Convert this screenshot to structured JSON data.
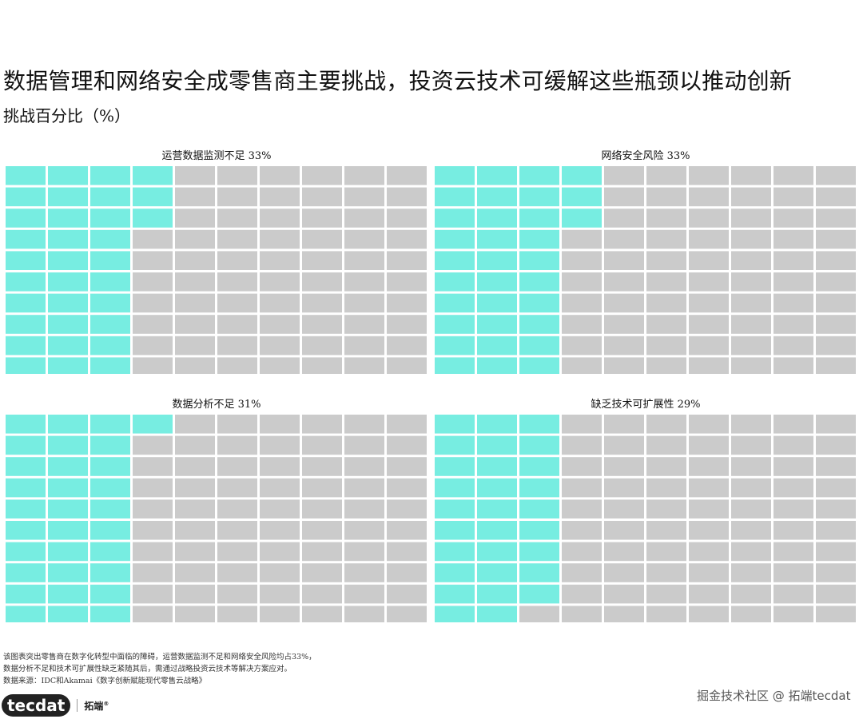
{
  "title": "数据管理和网络安全成零售商主要挑战，投资云技术可缓解这些瓶颈以推动创新",
  "subtitle": "挑战百分比（%）",
  "colors": {
    "filled": "#77ede1",
    "empty": "#cbcbcb",
    "background": "#ffffff"
  },
  "chart_data": [
    {
      "type": "waffle",
      "label": "运营数据监测不足 33%",
      "category": "运营数据监测不足",
      "value": 33,
      "unit": "%",
      "cells_total": 100
    },
    {
      "type": "waffle",
      "label": "网络安全风险 33%",
      "category": "网络安全风险",
      "value": 33,
      "unit": "%",
      "cells_total": 100
    },
    {
      "type": "waffle",
      "label": "数据分析不足 31%",
      "category": "数据分析不足",
      "value": 31,
      "unit": "%",
      "cells_total": 100
    },
    {
      "type": "waffle",
      "label": "缺乏技术可扩展性 29%",
      "category": "缺乏技术可扩展性",
      "value": 29,
      "unit": "%",
      "cells_total": 100
    }
  ],
  "footnotes": [
    "该图表突出零售商在数字化转型中面临的障碍，运营数据监测不足和网络安全风险均占33%，",
    "数据分析不足和技术可扩展性缺乏紧随其后，需通过战略投资云技术等解决方案应对。",
    "数据来源：IDC和Akamai《数字创新赋能现代零售云战略》"
  ],
  "logo": {
    "mark": "tecdat",
    "name": "拓端",
    "registered": "®"
  },
  "watermark": "掘金技术社区 @ 拓端tecdat"
}
